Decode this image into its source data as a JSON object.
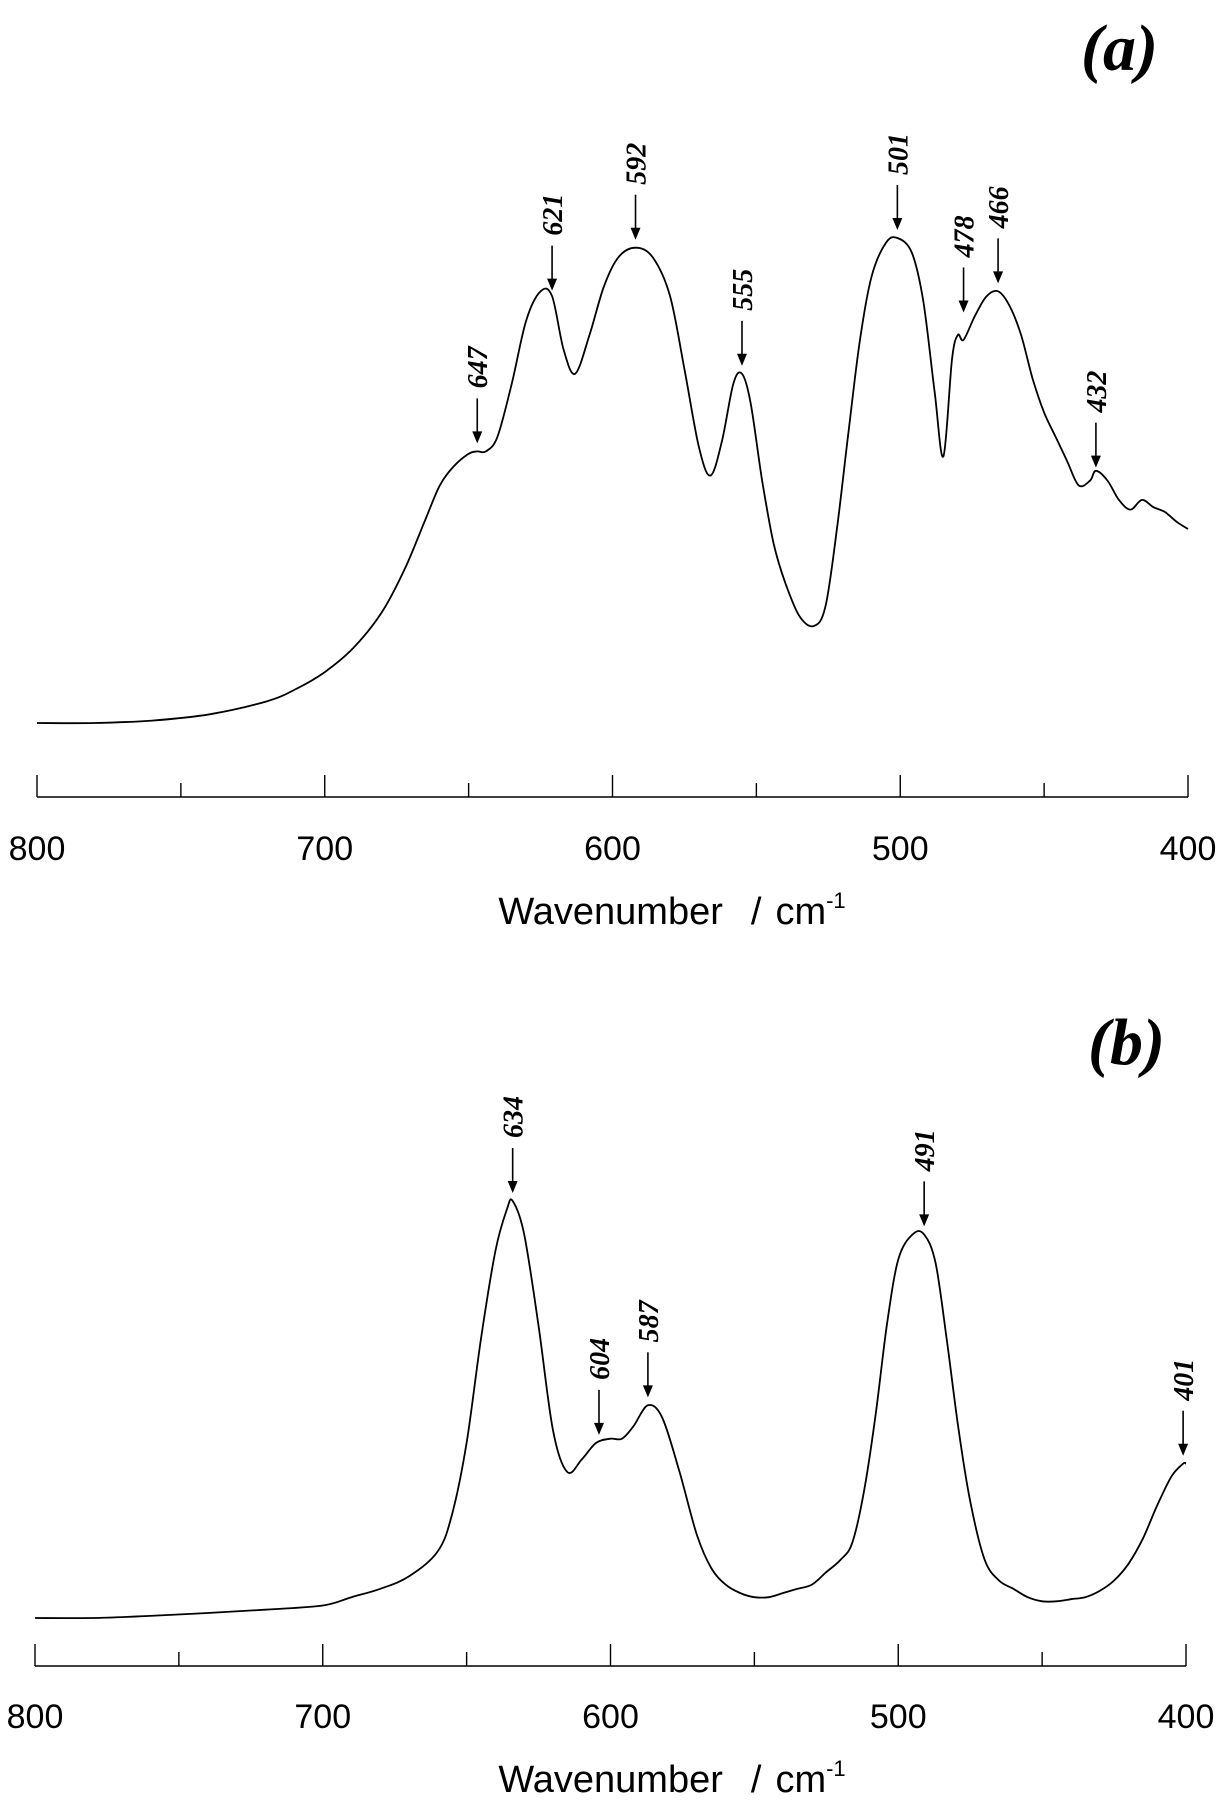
{
  "chart_data": [
    {
      "type": "line",
      "panel_label": "(a)",
      "xlabel": "Wavenumber",
      "xunit": "cm",
      "xunit_exp": "-1",
      "x_reversed": true,
      "xlim": [
        800,
        400
      ],
      "xticks_major": [
        800,
        700,
        600,
        500,
        400
      ],
      "xticks_minor": [
        750,
        650,
        550,
        450
      ],
      "ylabel": "",
      "grid": false,
      "ylim": [
        0,
        100
      ],
      "peaks": [
        {
          "label": "647",
          "x": 647,
          "y": 56
        },
        {
          "label": "621",
          "x": 621,
          "y": 87.5
        },
        {
          "label": "592",
          "x": 592,
          "y": 98
        },
        {
          "label": "555",
          "x": 555,
          "y": 72
        },
        {
          "label": "501",
          "x": 501,
          "y": 100
        },
        {
          "label": "478",
          "x": 478,
          "y": 83
        },
        {
          "label": "466",
          "x": 466,
          "y": 89
        },
        {
          "label": "432",
          "x": 432,
          "y": 51
        }
      ],
      "series": [
        {
          "x": [
            800,
            780,
            760,
            740,
            720,
            710,
            700,
            690,
            680,
            672,
            665,
            660,
            655,
            650,
            647,
            644,
            640,
            635,
            630,
            625,
            621,
            617,
            613,
            608,
            603,
            598,
            592,
            586,
            580,
            575,
            570,
            566,
            562,
            558,
            555,
            552,
            548,
            544,
            540,
            535,
            530,
            526,
            522,
            518,
            514,
            510,
            505,
            501,
            496,
            492,
            488,
            485,
            482,
            480,
            478,
            474,
            470,
            466,
            462,
            458,
            454,
            450,
            446,
            442,
            438,
            434,
            432,
            428,
            424,
            420,
            416,
            412,
            408,
            404,
            400
          ],
          "y": [
            0,
            0,
            0.5,
            1.8,
            4.5,
            7,
            10.5,
            15.5,
            23,
            32,
            42,
            49,
            53,
            55.5,
            56,
            56,
            59,
            70,
            83,
            89,
            88,
            77,
            72,
            80,
            90,
            96,
            98,
            96,
            88,
            73,
            57,
            51,
            58,
            70,
            72,
            66,
            50,
            37,
            29,
            22,
            20,
            24,
            40,
            60,
            79,
            92,
            99,
            100,
            97,
            87,
            68,
            55,
            75,
            80,
            79,
            84,
            88,
            89,
            86,
            80,
            71,
            64,
            59,
            54,
            49,
            50,
            52,
            50,
            46,
            44,
            46,
            44.5,
            43.5,
            41.5,
            40
          ]
        }
      ]
    },
    {
      "type": "line",
      "panel_label": "(b)",
      "xlabel": "Wavenumber",
      "xunit": "cm",
      "xunit_exp": "-1",
      "x_reversed": true,
      "xlim": [
        800,
        400
      ],
      "xticks_major": [
        800,
        700,
        600,
        500,
        400
      ],
      "xticks_minor": [
        750,
        650,
        550,
        450
      ],
      "ylabel": "",
      "grid": false,
      "ylim": [
        0,
        100
      ],
      "peaks": [
        {
          "label": "634",
          "x": 634,
          "y": 100
        },
        {
          "label": "604",
          "x": 604,
          "y": 42
        },
        {
          "label": "587",
          "x": 587,
          "y": 51
        },
        {
          "label": "491",
          "x": 491,
          "y": 92
        },
        {
          "label": "401",
          "x": 401,
          "y": 37
        }
      ],
      "series": [
        {
          "x": [
            800,
            780,
            760,
            740,
            720,
            700,
            690,
            680,
            670,
            660,
            655,
            650,
            645,
            640,
            636,
            634,
            630,
            625,
            620,
            615,
            610,
            605,
            600,
            596,
            592,
            587,
            582,
            576,
            570,
            565,
            560,
            555,
            550,
            545,
            540,
            535,
            530,
            525,
            520,
            516,
            512,
            508,
            504,
            500,
            495,
            491,
            487,
            483,
            479,
            475,
            470,
            465,
            460,
            455,
            450,
            445,
            440,
            435,
            430,
            425,
            420,
            415,
            410,
            405,
            401,
            400
          ],
          "y": [
            0,
            0,
            0.5,
            1.2,
            2,
            3,
            5,
            7,
            10,
            16,
            25,
            42,
            67,
            88,
            98,
            100,
            92,
            70,
            45,
            35,
            38,
            42,
            43,
            43,
            46,
            51,
            48,
            35,
            20,
            12,
            8,
            6,
            5,
            5,
            6,
            7,
            8,
            11,
            14,
            18,
            30,
            48,
            70,
            86,
            92,
            92,
            85,
            66,
            45,
            28,
            14,
            9,
            7,
            5,
            4,
            4,
            4.5,
            5,
            6.5,
            9,
            13,
            19,
            27,
            34,
            37,
            37
          ]
        }
      ]
    }
  ]
}
